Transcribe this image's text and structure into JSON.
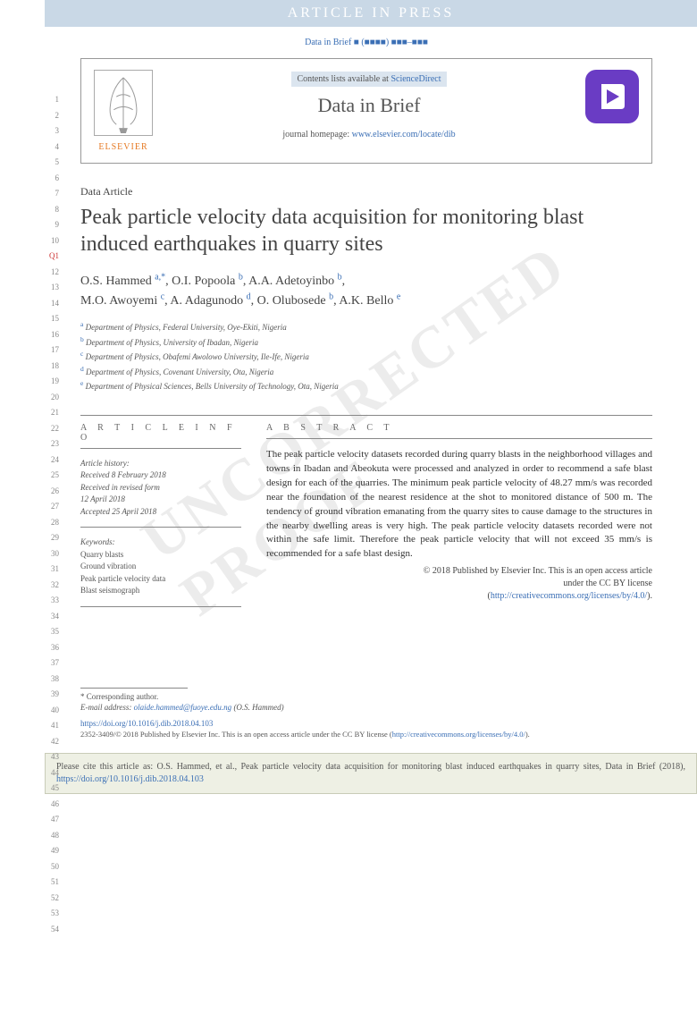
{
  "banner": "ARTICLE IN PRESS",
  "citation_top": {
    "journal": "Data in Brief",
    "placeholder": "■ (■■■■) ■■■–■■■"
  },
  "header": {
    "publisher": "ELSEVIER",
    "contents_pre": "Contents lists available at",
    "contents_link": "ScienceDirect",
    "journal_title": "Data in Brief",
    "homepage_pre": "journal homepage:",
    "homepage_url": "www.elsevier.com/locate/dib"
  },
  "article_type": "Data Article",
  "title": "Peak particle velocity data acquisition for monitoring blast induced earthquakes in quarry sites",
  "authors": [
    {
      "name": "O.S. Hammed",
      "sup": "a,",
      "corr": "*"
    },
    {
      "name": "O.I. Popoola",
      "sup": "b"
    },
    {
      "name": "A.A. Adetoyinbo",
      "sup": "b"
    },
    {
      "name": "M.O. Awoyemi",
      "sup": "c"
    },
    {
      "name": "A. Adagunodo",
      "sup": "d"
    },
    {
      "name": "O. Olubosede",
      "sup": "b"
    },
    {
      "name": "A.K. Bello",
      "sup": "e"
    }
  ],
  "affiliations": [
    {
      "sup": "a",
      "text": "Department of Physics, Federal University, Oye-Ekiti, Nigeria"
    },
    {
      "sup": "b",
      "text": "Department of Physics, University of Ibadan, Nigeria"
    },
    {
      "sup": "c",
      "text": "Department of Physics, Obafemi Awolowo University, Ile-Ife, Nigeria"
    },
    {
      "sup": "d",
      "text": "Department of Physics, Covenant University, Ota, Nigeria"
    },
    {
      "sup": "e",
      "text": "Department of Physical Sciences, Bells University of Technology, Ota, Nigeria"
    }
  ],
  "info_heading": "A R T I C L E  I N F O",
  "abstract_heading": "A B S T R A C T",
  "history": {
    "label": "Article history:",
    "received": "Received 8 February 2018",
    "revised1": "Received in revised form",
    "revised2": "12 April 2018",
    "accepted": "Accepted 25 April 2018"
  },
  "keywords": {
    "label": "Keywords:",
    "items": [
      "Quarry blasts",
      "Ground vibration",
      "Peak particle velocity data",
      "Blast seismograph"
    ]
  },
  "abstract": "The peak particle velocity datasets recorded during quarry blasts in the neighborhood villages and towns in Ibadan and Abeokuta were processed and analyzed in order to recommend a safe blast design for each of the quarries. The minimum peak particle velocity of 48.27 mm/s was recorded near the foundation of the nearest residence at the shot to monitored distance of 500 m. The tendency of ground vibration emanating from the quarry sites to cause damage to the structures in the nearby dwelling areas is very high. The peak particle velocity datasets recorded were not within the safe limit. Therefore the peak particle velocity that will not exceed 35 mm/s is recommended for a safe blast design.",
  "copyright": {
    "line1": "© 2018 Published by Elsevier Inc. This is an open access article",
    "line2": "under the CC BY license",
    "url": "http://creativecommons.org/licenses/by/4.0/"
  },
  "footer": {
    "corr_label": "* Corresponding author.",
    "email_label": "E-mail address:",
    "email": "olaide.hammed@fuoye.edu.ng",
    "email_author": "(O.S. Hammed)",
    "doi": "https://doi.org/10.1016/j.dib.2018.04.103",
    "issn_line": "2352-3409/© 2018 Published by Elsevier Inc. This is an open access article under the CC BY license",
    "cc_url": "http://creativecommons.org/licenses/by/4.0/"
  },
  "cite_box": {
    "pre": "Please cite this article as: O.S. Hammed, et al., Peak particle velocity data acquisition for monitoring blast induced earthquakes in quarry sites, Data in Brief (2018),",
    "url": "https://doi.org/10.1016/j.dib.2018.04.103"
  },
  "watermark": "UNCORRECTED PROOF",
  "line_numbers": {
    "start": 1,
    "end": 54,
    "qmark_at": 11
  }
}
